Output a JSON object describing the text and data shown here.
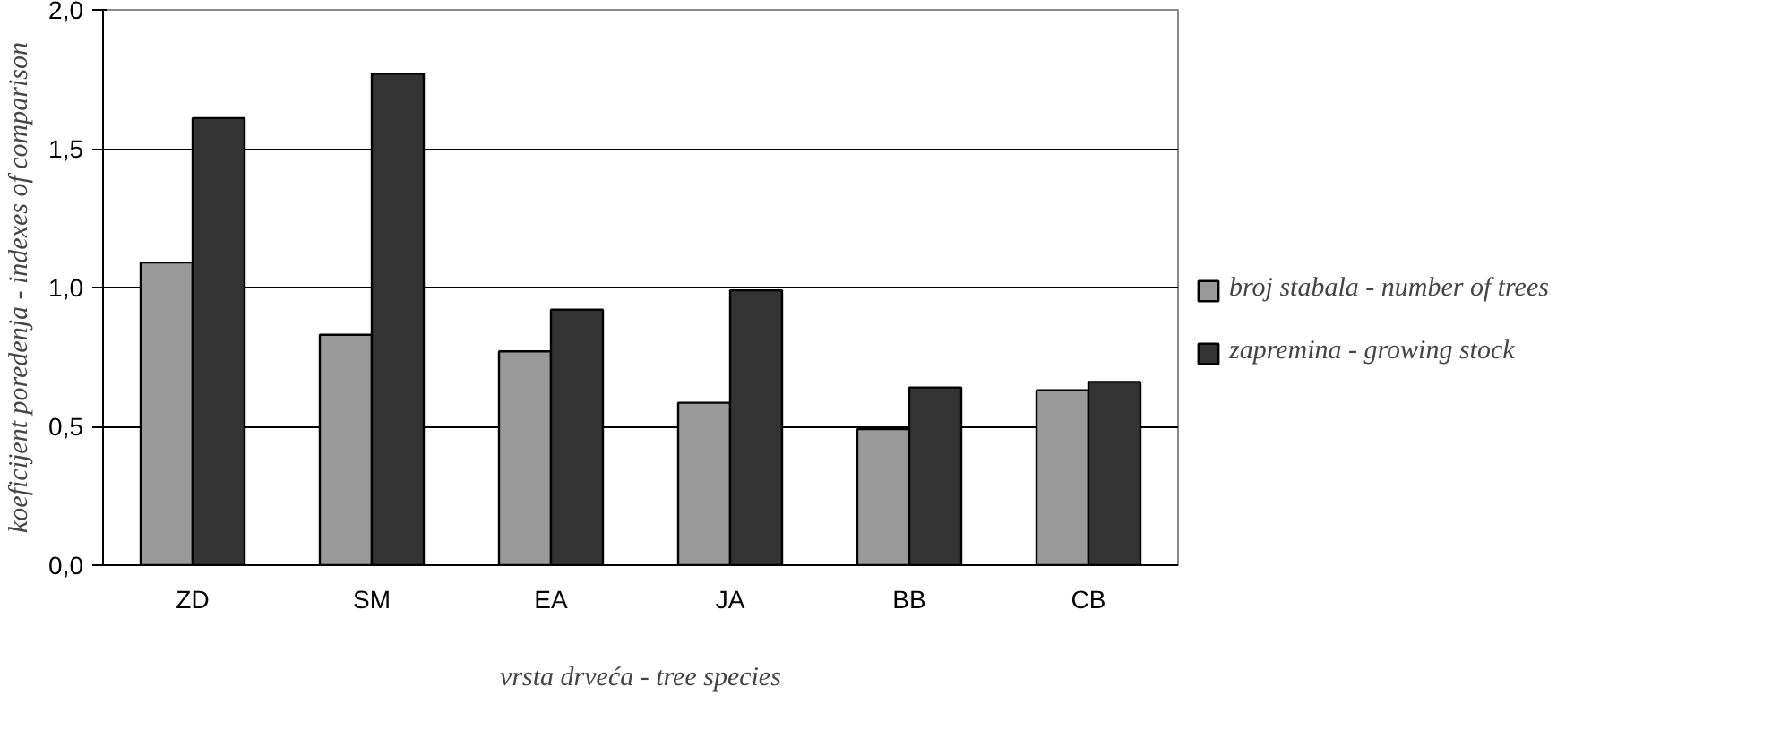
{
  "chart_data": {
    "type": "bar",
    "xlabel": "vrsta drveća - tree species",
    "ylabel": "koeficijent poredenja - indexes of comparison",
    "categories": [
      "ZD",
      "SM",
      "EA",
      "JA",
      "BB",
      "CB"
    ],
    "series": [
      {
        "name": "broj stabala - number of trees",
        "color": "#999999",
        "values": [
          1.09,
          0.83,
          0.77,
          0.585,
          0.49,
          0.63
        ]
      },
      {
        "name": "zapremina - growing stock",
        "color": "#333333",
        "values": [
          1.61,
          1.77,
          0.92,
          0.99,
          0.64,
          0.66
        ]
      }
    ],
    "ylim": [
      0,
      2
    ],
    "yticks": [
      {
        "value": 0,
        "label": "0,0"
      },
      {
        "value": 0.5,
        "label": "0,5"
      },
      {
        "value": 1,
        "label": "1,0"
      },
      {
        "value": 1.5,
        "label": "1,5"
      },
      {
        "value": 2,
        "label": "2,0"
      }
    ],
    "grid": "y",
    "legend": "right"
  }
}
